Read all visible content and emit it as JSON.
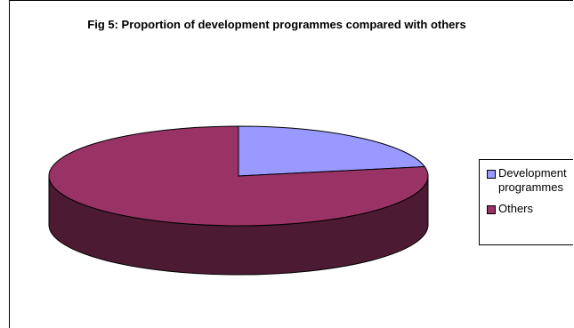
{
  "chart_data": {
    "type": "pie",
    "title": "Fig 5: Proportion of development programmes compared with others",
    "categories": [
      "Development programmes",
      "Others"
    ],
    "values": [
      22,
      78
    ],
    "colors": [
      "#9999ff",
      "#993366"
    ],
    "side_colors": [
      "#4d4d80",
      "#4d1a33"
    ],
    "style": "3d",
    "legend_position": "right",
    "legend": {
      "items": [
        {
          "label_line1": "Development",
          "label_line2": "programmes"
        },
        {
          "label_line1": "Others",
          "label_line2": ""
        }
      ]
    }
  }
}
